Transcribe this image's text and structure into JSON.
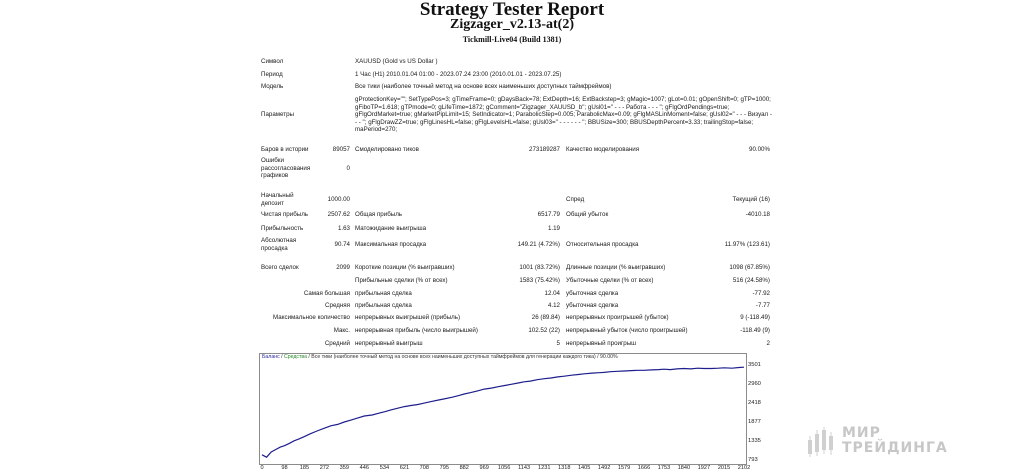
{
  "report": {
    "title": "Strategy Tester Report",
    "expert": "Zigzager_v2.13-at(2)",
    "build": "Tickmill-Live04 (Build 1381)"
  },
  "info": {
    "symbol_label": "Символ",
    "symbol_value": "XAUUSD (Gold vs US Dollar )",
    "period_label": "Период",
    "period_value": "1 Час (H1) 2010.01.04 01:00 - 2023.07.24 23:00 (2010.01.01 - 2023.07.25)",
    "model_label": "Модель",
    "model_value": "Все тики (наиболее точный метод на основе всех наименьших доступных таймфреймов)",
    "params_label": "Параметры",
    "params_value": "gProtectionKey=\"\"; SetTypePos=3; gTimeFrame=0; gDaysBack=78; ExtDepth=16; ExtBackstep=3; gMagic=1007; gLot=0.01; gOpenShift=0; gTP=1000; gFiboTP=1.618; gTPmode=0; gLifeTime=1872; gComment=\"Zigzager_XAUUSD_b\"; gUsl01=\" - - - Работа - - - \"; gFlgOrdPendings=true; gFlgOrdMarket=true; gMarketPipLimit=15; SetIndicator=1; ParabolicStep=0.005; ParabolicMax=0.09; gFlgMASLinMoment=false; gUsl02=\" - - - Визуал - - - \"; gFlgDrawZZ=true; gFlgLinesHL=false; gFlgLevelsHL=false; gUsl03=\" - - - - - - \"; BBUSize=300; BBUSDepthPercent=3.33; trailingStop=false; maPeriod=270;"
  },
  "stats": {
    "bars_label": "Баров в истории",
    "bars_value": "89057",
    "ticks_label": "Смоделировано тиков",
    "ticks_value": "273189287",
    "quality_label": "Качество моделирования",
    "quality_value": "90.00%",
    "errors_label": "Ошибки рассогласования графиков",
    "errors_value": "0",
    "deposit_label": "Начальный депозит",
    "deposit_value": "1000.00",
    "spread_label": "Спред",
    "spread_value": "Текущий (16)",
    "netprofit_label": "Чистая прибыль",
    "netprofit_value": "2507.62",
    "grossprofit_label": "Общая прибыль",
    "grossprofit_value": "6517.79",
    "grossloss_label": "Общий убыток",
    "grossloss_value": "-4010.18",
    "pf_label": "Прибыльность",
    "pf_value": "1.63",
    "expected_label": "Матожидание выигрыша",
    "expected_value": "1.19",
    "absdd_label": "Абсолютная просадка",
    "absdd_value": "90.74",
    "maxdd_label": "Максимальная просадка",
    "maxdd_value": "149.21 (4.72%)",
    "reldd_label": "Относительная просадка",
    "reldd_value": "11.97% (123.61)",
    "trades_label": "Всего сделок",
    "trades_value": "2099",
    "short_label": "Короткие позиции (% выигравших)",
    "short_value": "1001 (83.72%)",
    "long_label": "Длинные позиции (% выигравших)",
    "long_value": "1098 (67.85%)",
    "profit_trades_label": "Прибыльные сделки (% от всех)",
    "profit_trades_value": "1583 (75.42%)",
    "loss_trades_label": "Убыточные сделки (% от всех)",
    "loss_trades_value": "516 (24.58%)",
    "largest_label": "Самая большая",
    "largest_profit_label": "прибыльная сделка",
    "largest_profit_value": "12.04",
    "largest_loss_label": "убыточная сделка",
    "largest_loss_value": "-77.92",
    "average_label": "Средняя",
    "average_profit_label": "прибыльная сделка",
    "average_profit_value": "4.12",
    "average_loss_label": "убыточная сделка",
    "average_loss_value": "-7.77",
    "maxcount_label": "Максимальное количество",
    "maxcount_wins_label": "непрерывных выигрышей (прибыль)",
    "maxcount_wins_value": "26 (89.84)",
    "maxcount_losses_label": "непрерывных проигрышей (убыток)",
    "maxcount_losses_value": "9 (-118.49)",
    "max_label": "Макс.",
    "max_profit_label": "непрерывная прибыль (число выигрышей)",
    "max_profit_value": "102.52 (22)",
    "max_loss_label": "непрерывный убыток (число проигрышей)",
    "max_loss_value": "-118.49 (9)",
    "avg_label": "Средний",
    "avg_wins_label": "непрерывный выигрыш",
    "avg_wins_value": "5",
    "avg_losses_label": "непрерывный проигрыш",
    "avg_losses_value": "2"
  },
  "chart_header": {
    "balance": "Баланс",
    "sep1": " / ",
    "equity": "Средства",
    "rest": " / Все тики (наиболее точный метод на основе всех наименьших доступных таймфреймов для генерации каждого тика) / 90.00%"
  },
  "chart_data": {
    "type": "line",
    "y_ticks": [
      793,
      1335,
      1877,
      2418,
      2960,
      3501
    ],
    "x_ticks": [
      0,
      98,
      185,
      272,
      359,
      446,
      534,
      621,
      708,
      795,
      882,
      969,
      1056,
      1143,
      1231,
      1318,
      1405,
      1492,
      1579,
      1666,
      1753,
      1840,
      1927,
      2015,
      2102
    ],
    "ylim": [
      793,
      3600
    ],
    "xlim": [
      0,
      2102
    ],
    "series": [
      {
        "color": "#1e1e8c",
        "x": [
          0,
          20,
          40,
          60,
          80,
          98,
          120,
          140,
          160,
          185,
          210,
          240,
          272,
          300,
          330,
          359,
          390,
          420,
          446,
          480,
          510,
          534,
          560,
          590,
          621,
          650,
          680,
          708,
          740,
          770,
          795,
          830,
          860,
          882,
          910,
          940,
          969,
          1000,
          1030,
          1056,
          1090,
          1120,
          1143,
          1170,
          1200,
          1231,
          1260,
          1290,
          1318,
          1350,
          1380,
          1405,
          1440,
          1470,
          1492,
          1520,
          1550,
          1579,
          1610,
          1640,
          1666,
          1700,
          1730,
          1753,
          1780,
          1810,
          1840,
          1870,
          1900,
          1927,
          1960,
          1990,
          2015,
          2050,
          2080,
          2102
        ],
        "values": [
          1000,
          930,
          1080,
          1150,
          1220,
          1260,
          1330,
          1400,
          1450,
          1520,
          1600,
          1680,
          1760,
          1830,
          1870,
          1940,
          2000,
          2060,
          2110,
          2140,
          2190,
          2230,
          2280,
          2330,
          2380,
          2410,
          2440,
          2480,
          2530,
          2570,
          2600,
          2650,
          2700,
          2740,
          2780,
          2830,
          2880,
          2910,
          2950,
          2980,
          3020,
          3060,
          3090,
          3110,
          3150,
          3180,
          3200,
          3230,
          3250,
          3280,
          3300,
          3320,
          3340,
          3350,
          3360,
          3380,
          3390,
          3400,
          3410,
          3420,
          3420,
          3430,
          3440,
          3450,
          3440,
          3460,
          3470,
          3460,
          3480,
          3470,
          3470,
          3480,
          3490,
          3480,
          3500,
          3507
        ]
      }
    ]
  },
  "watermark": {
    "line1": "МИР",
    "line2": "ТРЕЙДИНГА"
  }
}
